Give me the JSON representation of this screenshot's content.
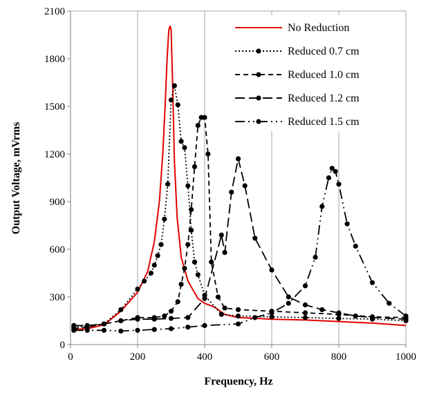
{
  "chart_data": {
    "type": "line",
    "xlabel": "Frequency, Hz",
    "ylabel": "Output Voltage, mVrms",
    "xlim": [
      0,
      1000
    ],
    "ylim": [
      0,
      2100
    ],
    "xticks": [
      "0",
      "200",
      "400",
      "600",
      "800",
      "1000"
    ],
    "yticks": [
      "0",
      "300",
      "600",
      "900",
      "1200",
      "1500",
      "1800",
      "2100"
    ],
    "grid": "vertical",
    "legend_position": "top-right",
    "series": [
      {
        "name": "No Reduction",
        "color": "#e00000",
        "dash": "solid",
        "markers": false,
        "x": [
          10,
          50,
          100,
          150,
          200,
          230,
          250,
          265,
          275,
          282,
          288,
          293,
          297,
          300,
          305,
          310,
          318,
          330,
          350,
          380,
          400,
          430,
          460,
          500,
          600,
          700,
          800,
          900,
          1000
        ],
        "y": [
          95,
          100,
          125,
          210,
          330,
          460,
          650,
          900,
          1200,
          1500,
          1800,
          1980,
          2005,
          1980,
          1600,
          1150,
          800,
          550,
          400,
          290,
          260,
          235,
          190,
          170,
          160,
          155,
          145,
          135,
          120
        ]
      },
      {
        "name": "Reduced 0.7 cm",
        "color": "#000000",
        "dash": "dot",
        "markers": true,
        "x": [
          10,
          50,
          100,
          150,
          200,
          220,
          240,
          250,
          260,
          270,
          280,
          290,
          300,
          310,
          320,
          330,
          340,
          350,
          360,
          370,
          380,
          400,
          450,
          500,
          600,
          700,
          800,
          900,
          1000
        ],
        "y": [
          110,
          115,
          130,
          220,
          350,
          400,
          450,
          500,
          560,
          630,
          790,
          1010,
          1540,
          1630,
          1510,
          1280,
          1240,
          1000,
          720,
          520,
          440,
          310,
          190,
          180,
          175,
          170,
          165,
          160,
          150
        ]
      },
      {
        "name": "Reduced 1.0 cm",
        "color": "#000000",
        "dash": "short",
        "markers": true,
        "x": [
          10,
          50,
          100,
          150,
          200,
          250,
          280,
          300,
          320,
          330,
          340,
          350,
          360,
          370,
          380,
          390,
          400,
          410,
          420,
          440,
          460,
          500,
          600,
          700,
          800,
          900,
          1000
        ],
        "y": [
          100,
          110,
          130,
          150,
          170,
          170,
          180,
          210,
          270,
          380,
          480,
          630,
          850,
          1120,
          1380,
          1430,
          1430,
          1200,
          520,
          300,
          230,
          220,
          210,
          200,
          190,
          175,
          170
        ]
      },
      {
        "name": "Reduced 1.2 cm",
        "color": "#000000",
        "dash": "long",
        "markers": true,
        "x": [
          10,
          50,
          100,
          150,
          200,
          250,
          300,
          350,
          400,
          450,
          460,
          480,
          500,
          520,
          550,
          600,
          650,
          700,
          750,
          800,
          850,
          900,
          1000
        ],
        "y": [
          120,
          120,
          130,
          150,
          160,
          160,
          165,
          170,
          290,
          690,
          580,
          960,
          1170,
          1000,
          670,
          470,
          300,
          250,
          220,
          200,
          180,
          170,
          160
        ]
      },
      {
        "name": "Reduced 1.5 cm",
        "color": "#000000",
        "dash": "dashdot",
        "markers": true,
        "x": [
          10,
          50,
          100,
          150,
          200,
          250,
          300,
          350,
          400,
          500,
          550,
          600,
          650,
          700,
          730,
          750,
          770,
          780,
          790,
          800,
          825,
          850,
          900,
          950,
          1000
        ],
        "y": [
          90,
          90,
          90,
          85,
          90,
          95,
          100,
          110,
          120,
          130,
          170,
          200,
          260,
          370,
          550,
          870,
          1050,
          1110,
          1090,
          1010,
          760,
          620,
          390,
          260,
          180
        ]
      }
    ]
  }
}
